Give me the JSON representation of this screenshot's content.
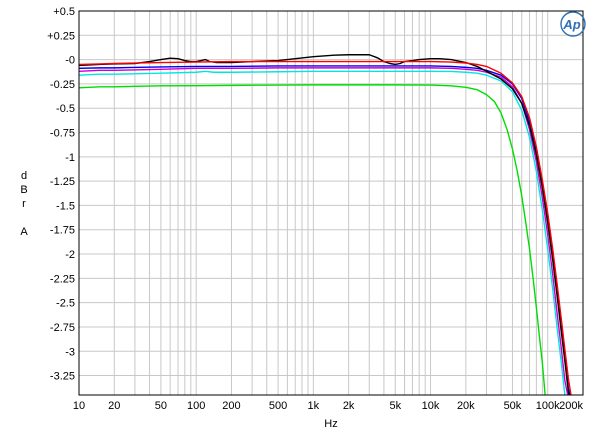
{
  "chart_data": {
    "type": "line",
    "title": "",
    "xlabel": "Hz",
    "ylabel_letters": [
      "d",
      "B",
      "r",
      "A"
    ],
    "x_scale": "log",
    "xlim": [
      10,
      200000
    ],
    "ylim": [
      -3.45,
      0.5
    ],
    "x_ticks": [
      {
        "value": 10,
        "label": "10"
      },
      {
        "value": 20,
        "label": "20"
      },
      {
        "value": 50,
        "label": "50"
      },
      {
        "value": 100,
        "label": "100"
      },
      {
        "value": 200,
        "label": "200"
      },
      {
        "value": 500,
        "label": "500"
      },
      {
        "value": 1000,
        "label": "1k"
      },
      {
        "value": 2000,
        "label": "2k"
      },
      {
        "value": 5000,
        "label": "5k"
      },
      {
        "value": 10000,
        "label": "10k"
      },
      {
        "value": 20000,
        "label": "20k"
      },
      {
        "value": 50000,
        "label": "50k"
      },
      {
        "value": 100000,
        "label": "100k"
      },
      {
        "value": 200000,
        "label": "200k"
      }
    ],
    "y_ticks": [
      {
        "value": 0.5,
        "label": "+0.5"
      },
      {
        "value": 0.25,
        "label": "+0.25"
      },
      {
        "value": 0,
        "label": "-0"
      },
      {
        "value": -0.25,
        "label": "-0.25"
      },
      {
        "value": -0.5,
        "label": "-0.5"
      },
      {
        "value": -0.75,
        "label": "-0.75"
      },
      {
        "value": -1,
        "label": "-1"
      },
      {
        "value": -1.25,
        "label": "-1.25"
      },
      {
        "value": -1.5,
        "label": "-1.5"
      },
      {
        "value": -1.75,
        "label": "-1.75"
      },
      {
        "value": -2,
        "label": "-2"
      },
      {
        "value": -2.25,
        "label": "-2.25"
      },
      {
        "value": -2.5,
        "label": "-2.5"
      },
      {
        "value": -2.75,
        "label": "-2.75"
      },
      {
        "value": -3,
        "label": "-3"
      },
      {
        "value": -3.25,
        "label": "-3.25"
      }
    ],
    "grid": true,
    "logo": "Ap",
    "colors": {
      "grid": "#c8c8c8",
      "frame": "#000000",
      "logo": "#2f6fb4"
    },
    "series": [
      {
        "color": "#00dd00",
        "points": [
          [
            10,
            -0.29
          ],
          [
            15,
            -0.28
          ],
          [
            20,
            -0.28
          ],
          [
            30,
            -0.275
          ],
          [
            50,
            -0.27
          ],
          [
            100,
            -0.268
          ],
          [
            200,
            -0.265
          ],
          [
            500,
            -0.262
          ],
          [
            1000,
            -0.26
          ],
          [
            2000,
            -0.26
          ],
          [
            5000,
            -0.26
          ],
          [
            10000,
            -0.262
          ],
          [
            15000,
            -0.27
          ],
          [
            20000,
            -0.285
          ],
          [
            25000,
            -0.31
          ],
          [
            30000,
            -0.36
          ],
          [
            35000,
            -0.43
          ],
          [
            40000,
            -0.55
          ],
          [
            45000,
            -0.72
          ],
          [
            50000,
            -0.92
          ],
          [
            55000,
            -1.15
          ],
          [
            60000,
            -1.4
          ],
          [
            65000,
            -1.68
          ],
          [
            70000,
            -1.95
          ],
          [
            75000,
            -2.25
          ],
          [
            80000,
            -2.55
          ],
          [
            85000,
            -2.85
          ],
          [
            90000,
            -3.12
          ],
          [
            95000,
            -3.45
          ]
        ]
      },
      {
        "color": "#00e6e6",
        "points": [
          [
            10,
            -0.16
          ],
          [
            15,
            -0.15
          ],
          [
            20,
            -0.15
          ],
          [
            50,
            -0.14
          ],
          [
            100,
            -0.13
          ],
          [
            120,
            -0.12
          ],
          [
            140,
            -0.13
          ],
          [
            200,
            -0.13
          ],
          [
            500,
            -0.125
          ],
          [
            1000,
            -0.12
          ],
          [
            2000,
            -0.12
          ],
          [
            5000,
            -0.12
          ],
          [
            10000,
            -0.12
          ],
          [
            15000,
            -0.122
          ],
          [
            20000,
            -0.13
          ],
          [
            25000,
            -0.14
          ],
          [
            30000,
            -0.16
          ],
          [
            40000,
            -0.22
          ],
          [
            50000,
            -0.33
          ],
          [
            60000,
            -0.52
          ],
          [
            70000,
            -0.8
          ],
          [
            80000,
            -1.15
          ],
          [
            90000,
            -1.55
          ],
          [
            100000,
            -1.95
          ],
          [
            110000,
            -2.35
          ],
          [
            120000,
            -2.75
          ],
          [
            130000,
            -3.1
          ],
          [
            140000,
            -3.45
          ]
        ]
      },
      {
        "color": "#cc00cc",
        "points": [
          [
            10,
            -0.12
          ],
          [
            15,
            -0.11
          ],
          [
            20,
            -0.11
          ],
          [
            50,
            -0.1
          ],
          [
            100,
            -0.09
          ],
          [
            200,
            -0.09
          ],
          [
            500,
            -0.085
          ],
          [
            1000,
            -0.085
          ],
          [
            2000,
            -0.085
          ],
          [
            5000,
            -0.085
          ],
          [
            10000,
            -0.085
          ],
          [
            15000,
            -0.09
          ],
          [
            20000,
            -0.1
          ],
          [
            25000,
            -0.11
          ],
          [
            30000,
            -0.13
          ],
          [
            40000,
            -0.18
          ],
          [
            50000,
            -0.28
          ],
          [
            60000,
            -0.45
          ],
          [
            70000,
            -0.72
          ],
          [
            80000,
            -1.05
          ],
          [
            90000,
            -1.42
          ],
          [
            100000,
            -1.8
          ],
          [
            110000,
            -2.2
          ],
          [
            120000,
            -2.6
          ],
          [
            130000,
            -2.95
          ],
          [
            140000,
            -3.3
          ],
          [
            148000,
            -3.45
          ]
        ]
      },
      {
        "color": "#0000ee",
        "points": [
          [
            10,
            -0.09
          ],
          [
            15,
            -0.085
          ],
          [
            20,
            -0.085
          ],
          [
            50,
            -0.075
          ],
          [
            100,
            -0.07
          ],
          [
            200,
            -0.07
          ],
          [
            500,
            -0.065
          ],
          [
            1000,
            -0.065
          ],
          [
            2000,
            -0.065
          ],
          [
            5000,
            -0.065
          ],
          [
            10000,
            -0.065
          ],
          [
            15000,
            -0.07
          ],
          [
            20000,
            -0.08
          ],
          [
            25000,
            -0.09
          ],
          [
            30000,
            -0.11
          ],
          [
            40000,
            -0.16
          ],
          [
            50000,
            -0.25
          ],
          [
            60000,
            -0.4
          ],
          [
            70000,
            -0.64
          ],
          [
            80000,
            -0.95
          ],
          [
            90000,
            -1.3
          ],
          [
            100000,
            -1.66
          ],
          [
            110000,
            -2.03
          ],
          [
            120000,
            -2.4
          ],
          [
            130000,
            -2.75
          ],
          [
            140000,
            -3.08
          ],
          [
            150000,
            -3.38
          ],
          [
            155000,
            -3.45
          ]
        ]
      },
      {
        "color": "#000000",
        "points": [
          [
            10,
            -0.06
          ],
          [
            15,
            -0.05
          ],
          [
            20,
            -0.045
          ],
          [
            30,
            -0.04
          ],
          [
            40,
            -0.02
          ],
          [
            50,
            0.0
          ],
          [
            60,
            0.015
          ],
          [
            70,
            0.01
          ],
          [
            80,
            -0.01
          ],
          [
            90,
            -0.02
          ],
          [
            100,
            -0.02
          ],
          [
            110,
            -0.01
          ],
          [
            120,
            0.0
          ],
          [
            130,
            -0.02
          ],
          [
            150,
            -0.03
          ],
          [
            200,
            -0.03
          ],
          [
            300,
            -0.02
          ],
          [
            500,
            -0.01
          ],
          [
            700,
            0.01
          ],
          [
            1000,
            0.03
          ],
          [
            1500,
            0.045
          ],
          [
            2000,
            0.05
          ],
          [
            2500,
            0.05
          ],
          [
            3000,
            0.05
          ],
          [
            3500,
            0.02
          ],
          [
            4000,
            -0.02
          ],
          [
            4500,
            -0.04
          ],
          [
            5000,
            -0.05
          ],
          [
            5500,
            -0.04
          ],
          [
            6000,
            -0.02
          ],
          [
            7000,
            -0.01
          ],
          [
            8000,
            0.0
          ],
          [
            10000,
            0.01
          ],
          [
            12000,
            0.01
          ],
          [
            15000,
            0.0
          ],
          [
            20000,
            -0.03
          ],
          [
            25000,
            -0.07
          ],
          [
            30000,
            -0.12
          ],
          [
            40000,
            -0.2
          ],
          [
            50000,
            -0.3
          ],
          [
            60000,
            -0.45
          ],
          [
            70000,
            -0.68
          ],
          [
            80000,
            -0.98
          ],
          [
            90000,
            -1.32
          ],
          [
            100000,
            -1.68
          ],
          [
            110000,
            -2.05
          ],
          [
            120000,
            -2.42
          ],
          [
            130000,
            -2.78
          ],
          [
            140000,
            -3.1
          ],
          [
            150000,
            -3.42
          ],
          [
            152000,
            -3.45
          ]
        ]
      },
      {
        "color": "#ff0000",
        "points": [
          [
            10,
            -0.05
          ],
          [
            15,
            -0.045
          ],
          [
            20,
            -0.04
          ],
          [
            50,
            -0.03
          ],
          [
            100,
            -0.025
          ],
          [
            200,
            -0.02
          ],
          [
            500,
            -0.02
          ],
          [
            1000,
            -0.02
          ],
          [
            2000,
            -0.02
          ],
          [
            5000,
            -0.02
          ],
          [
            10000,
            -0.02
          ],
          [
            15000,
            -0.025
          ],
          [
            20000,
            -0.035
          ],
          [
            25000,
            -0.05
          ],
          [
            30000,
            -0.07
          ],
          [
            40000,
            -0.14
          ],
          [
            50000,
            -0.24
          ],
          [
            60000,
            -0.38
          ],
          [
            70000,
            -0.6
          ],
          [
            80000,
            -0.9
          ],
          [
            90000,
            -1.24
          ],
          [
            100000,
            -1.58
          ],
          [
            110000,
            -1.94
          ],
          [
            120000,
            -2.3
          ],
          [
            130000,
            -2.65
          ],
          [
            140000,
            -2.98
          ],
          [
            150000,
            -3.28
          ],
          [
            158000,
            -3.45
          ]
        ]
      }
    ]
  }
}
